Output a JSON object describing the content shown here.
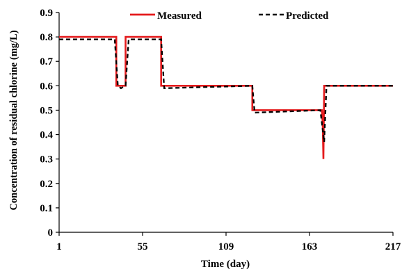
{
  "chart_data": {
    "type": "line",
    "title": "",
    "xlabel": "Time (day)",
    "ylabel": "Concentration of residual chlorine (mg/L)",
    "xlim": [
      1,
      217
    ],
    "ylim": [
      0,
      0.9
    ],
    "x_ticks": [
      "1",
      "55",
      "109",
      "163",
      "217"
    ],
    "y_ticks": [
      "0",
      "0.1",
      "0.2",
      "0.3",
      "0.4",
      "0.5",
      "0.6",
      "0.7",
      "0.8",
      "0.9"
    ],
    "legend_position": "top",
    "grid": false,
    "series": [
      {
        "name": "Measured",
        "color": "#e41a1c",
        "style": "solid",
        "x": [
          1,
          38,
          38,
          44,
          44,
          67,
          67,
          126,
          126,
          171,
          171.5,
          172,
          172.5,
          217
        ],
        "y": [
          0.8,
          0.8,
          0.6,
          0.6,
          0.8,
          0.8,
          0.6,
          0.6,
          0.5,
          0.5,
          0.45,
          0.3,
          0.6,
          0.6
        ]
      },
      {
        "name": "Predicted",
        "color": "#000000",
        "style": "dashed",
        "x": [
          1,
          37,
          39,
          41,
          44,
          46,
          67,
          69,
          126,
          127.5,
          170,
          172.5,
          174,
          217
        ],
        "y": [
          0.79,
          0.79,
          0.6,
          0.59,
          0.6,
          0.79,
          0.79,
          0.59,
          0.6,
          0.49,
          0.5,
          0.37,
          0.6,
          0.6
        ]
      }
    ]
  }
}
